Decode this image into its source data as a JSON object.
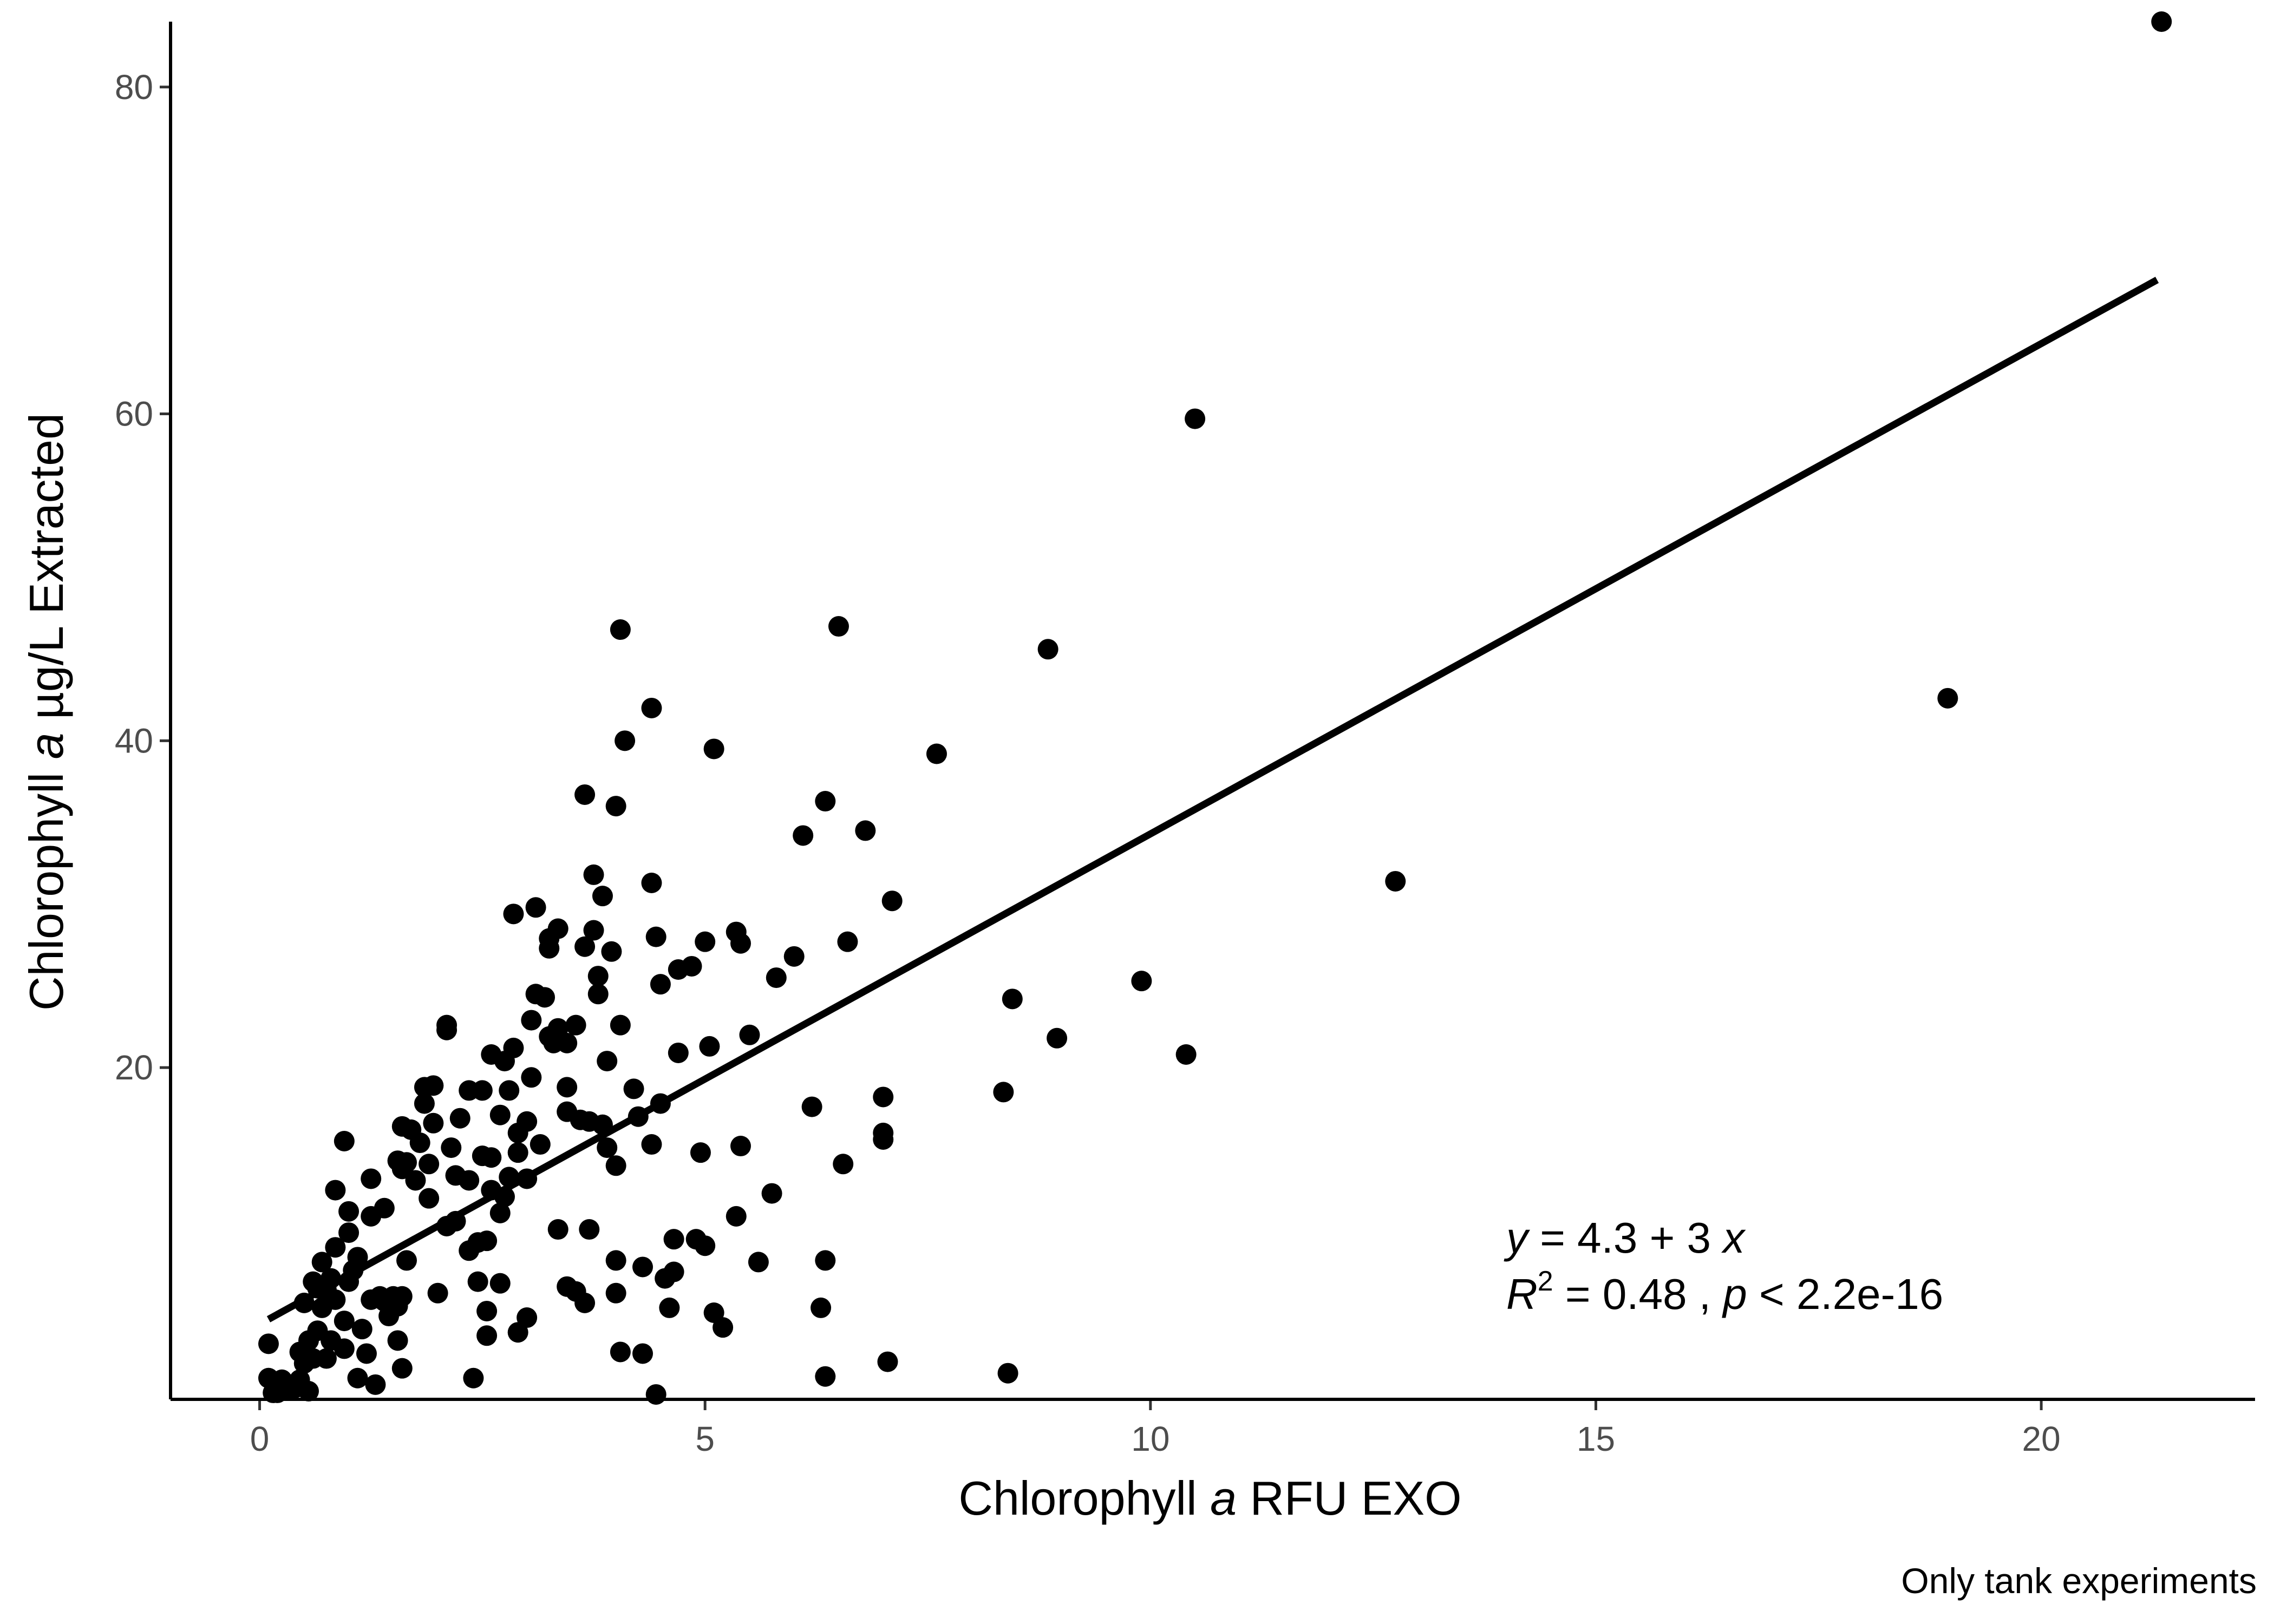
{
  "chart_data": {
    "type": "scatter",
    "xlabel": {
      "pre": "Chlorophyll ",
      "italic": "a",
      "post": " RFU EXO"
    },
    "ylabel": {
      "pre": "Chlorophyll ",
      "italic": "a",
      "post": " µg/L Extracted"
    },
    "caption": "Only tank experiments",
    "xlim": [
      -1.0,
      22.4
    ],
    "ylim": [
      -0.3,
      84.0
    ],
    "x_ticks": [
      0,
      5,
      10,
      15,
      20
    ],
    "y_ticks": [
      20,
      40,
      60,
      80
    ],
    "grid": false,
    "point_color": "#000000",
    "fit": {
      "intercept": 4.3,
      "slope": 3.0,
      "x_range": [
        0.1,
        21.3
      ]
    },
    "equation": {
      "y": "y",
      "lhs": " = 4.3 + 3 ",
      "x": "x"
    },
    "stats": {
      "r": "R",
      "sup": "2",
      "mid": " = 0.48 ,  ",
      "p": "p",
      "rest": " < 2.2e-16"
    },
    "points": [
      [
        21.35,
        84.0
      ],
      [
        10.5,
        59.7
      ],
      [
        18.95,
        42.6
      ],
      [
        12.75,
        31.4
      ],
      [
        8.85,
        45.6
      ],
      [
        9.9,
        25.3
      ],
      [
        8.95,
        21.8
      ],
      [
        10.4,
        20.8
      ],
      [
        8.45,
        24.2
      ],
      [
        8.35,
        18.5
      ],
      [
        8.4,
        1.3
      ],
      [
        7.6,
        39.2
      ],
      [
        7.1,
        30.2
      ],
      [
        7.0,
        18.2
      ],
      [
        7.0,
        16.0
      ],
      [
        7.0,
        15.6
      ],
      [
        7.05,
        2.0
      ],
      [
        6.8,
        34.5
      ],
      [
        6.5,
        47.0
      ],
      [
        6.35,
        36.3
      ],
      [
        6.6,
        27.7
      ],
      [
        6.55,
        14.1
      ],
      [
        6.35,
        8.2
      ],
      [
        6.3,
        5.3
      ],
      [
        6.35,
        1.1
      ],
      [
        6.1,
        34.2
      ],
      [
        6.2,
        17.6
      ],
      [
        6.0,
        26.8
      ],
      [
        5.8,
        25.5
      ],
      [
        5.75,
        12.3
      ],
      [
        5.6,
        8.1
      ],
      [
        5.5,
        22.0
      ],
      [
        5.4,
        27.6
      ],
      [
        5.35,
        28.3
      ],
      [
        5.4,
        15.2
      ],
      [
        5.35,
        10.9
      ],
      [
        5.2,
        4.1
      ],
      [
        5.1,
        5.0
      ],
      [
        5.1,
        39.5
      ],
      [
        5.0,
        27.7
      ],
      [
        5.05,
        21.3
      ],
      [
        4.95,
        14.8
      ],
      [
        5.0,
        9.1
      ],
      [
        4.9,
        9.5
      ],
      [
        4.85,
        26.2
      ],
      [
        4.7,
        26.0
      ],
      [
        4.7,
        20.9
      ],
      [
        4.65,
        9.5
      ],
      [
        4.65,
        7.5
      ],
      [
        4.6,
        5.3
      ],
      [
        4.55,
        7.1
      ],
      [
        4.5,
        25.1
      ],
      [
        4.5,
        17.8
      ],
      [
        4.4,
        42.0
      ],
      [
        4.4,
        31.3
      ],
      [
        4.4,
        15.3
      ],
      [
        4.45,
        28.0
      ],
      [
        4.2,
        18.7
      ],
      [
        4.25,
        17.0
      ],
      [
        4.3,
        2.5
      ],
      [
        4.3,
        7.8
      ],
      [
        4.1,
        40.0
      ],
      [
        4.05,
        46.8
      ],
      [
        4.05,
        22.6
      ],
      [
        4.0,
        36.0
      ],
      [
        3.95,
        27.1
      ],
      [
        4.0,
        14.0
      ],
      [
        4.0,
        8.2
      ],
      [
        4.05,
        2.6
      ],
      [
        4.0,
        6.2
      ],
      [
        4.45,
        0.0
      ],
      [
        3.85,
        30.5
      ],
      [
        3.8,
        25.6
      ],
      [
        3.8,
        24.5
      ],
      [
        3.9,
        20.4
      ],
      [
        3.9,
        15.1
      ],
      [
        3.75,
        31.8
      ],
      [
        3.75,
        28.4
      ],
      [
        3.85,
        16.5
      ],
      [
        3.65,
        36.7
      ],
      [
        3.65,
        27.4
      ],
      [
        3.7,
        16.7
      ],
      [
        3.7,
        10.1
      ],
      [
        3.65,
        5.6
      ],
      [
        3.55,
        22.6
      ],
      [
        3.6,
        16.8
      ],
      [
        3.55,
        6.3
      ],
      [
        3.45,
        21.5
      ],
      [
        3.45,
        17.3
      ],
      [
        3.45,
        18.8
      ],
      [
        3.45,
        6.6
      ],
      [
        3.35,
        22.4
      ],
      [
        3.35,
        28.5
      ],
      [
        3.3,
        21.5
      ],
      [
        3.35,
        10.1
      ],
      [
        3.25,
        27.9
      ],
      [
        3.25,
        27.3
      ],
      [
        3.25,
        21.9
      ],
      [
        3.2,
        24.3
      ],
      [
        3.1,
        29.8
      ],
      [
        3.1,
        24.5
      ],
      [
        3.05,
        22.9
      ],
      [
        3.05,
        19.4
      ],
      [
        3.15,
        15.3
      ],
      [
        3.0,
        16.7
      ],
      [
        3.0,
        13.2
      ],
      [
        3.0,
        4.7
      ],
      [
        2.85,
        29.4
      ],
      [
        2.85,
        21.2
      ],
      [
        2.9,
        16.0
      ],
      [
        2.9,
        14.8
      ],
      [
        2.9,
        3.8
      ],
      [
        2.8,
        18.6
      ],
      [
        2.8,
        13.3
      ],
      [
        2.75,
        20.4
      ],
      [
        2.75,
        12.1
      ],
      [
        2.7,
        17.1
      ],
      [
        2.7,
        11.1
      ],
      [
        2.7,
        6.8
      ],
      [
        2.6,
        20.8
      ],
      [
        2.6,
        14.5
      ],
      [
        2.6,
        12.5
      ],
      [
        2.55,
        9.4
      ],
      [
        2.55,
        5.1
      ],
      [
        2.55,
        3.6
      ],
      [
        2.5,
        18.6
      ],
      [
        2.5,
        14.6
      ],
      [
        2.45,
        9.3
      ],
      [
        2.45,
        6.9
      ],
      [
        2.35,
        18.6
      ],
      [
        2.35,
        13.1
      ],
      [
        2.35,
        8.8
      ],
      [
        2.4,
        1.0
      ],
      [
        2.25,
        16.9
      ],
      [
        2.2,
        13.4
      ],
      [
        2.2,
        10.6
      ],
      [
        2.1,
        22.6
      ],
      [
        2.1,
        22.3
      ],
      [
        2.15,
        15.1
      ],
      [
        2.1,
        10.3
      ],
      [
        1.95,
        18.9
      ],
      [
        1.95,
        16.6
      ],
      [
        1.9,
        14.1
      ],
      [
        1.9,
        12.0
      ],
      [
        2.0,
        6.2
      ],
      [
        1.85,
        18.8
      ],
      [
        1.85,
        17.8
      ],
      [
        1.8,
        15.4
      ],
      [
        1.75,
        13.1
      ],
      [
        1.7,
        16.2
      ],
      [
        1.65,
        14.2
      ],
      [
        1.65,
        8.2
      ],
      [
        1.6,
        16.4
      ],
      [
        1.6,
        13.8
      ],
      [
        1.6,
        6.0
      ],
      [
        1.6,
        1.6
      ],
      [
        1.55,
        14.3
      ],
      [
        1.55,
        5.4
      ],
      [
        1.55,
        3.3
      ],
      [
        1.5,
        6.0
      ],
      [
        1.45,
        4.8
      ],
      [
        1.4,
        11.4
      ],
      [
        1.4,
        5.7
      ],
      [
        1.35,
        6.0
      ],
      [
        1.3,
        0.6
      ],
      [
        1.25,
        13.2
      ],
      [
        1.25,
        10.9
      ],
      [
        1.25,
        5.8
      ],
      [
        1.2,
        2.5
      ],
      [
        1.15,
        4.0
      ],
      [
        1.1,
        8.4
      ],
      [
        1.05,
        7.6
      ],
      [
        1.1,
        1.0
      ],
      [
        0.95,
        15.5
      ],
      [
        1.0,
        11.2
      ],
      [
        1.0,
        9.9
      ],
      [
        1.0,
        6.9
      ],
      [
        0.95,
        4.5
      ],
      [
        0.95,
        2.8
      ],
      [
        0.85,
        12.5
      ],
      [
        0.85,
        9.0
      ],
      [
        0.85,
        5.8
      ],
      [
        0.8,
        7.1
      ],
      [
        0.8,
        3.3
      ],
      [
        0.75,
        6.4
      ],
      [
        0.75,
        2.2
      ],
      [
        0.7,
        8.1
      ],
      [
        0.7,
        5.3
      ],
      [
        0.65,
        6.5
      ],
      [
        0.65,
        3.9
      ],
      [
        0.6,
        6.9
      ],
      [
        0.6,
        2.2
      ],
      [
        0.55,
        3.3
      ],
      [
        0.5,
        5.6
      ],
      [
        0.5,
        1.9
      ],
      [
        0.45,
        2.6
      ],
      [
        0.45,
        0.9
      ],
      [
        0.4,
        0.4
      ],
      [
        0.35,
        0.6
      ],
      [
        0.3,
        0.3
      ],
      [
        0.25,
        0.9
      ],
      [
        0.2,
        0.1
      ],
      [
        0.1,
        3.1
      ],
      [
        0.1,
        1.0
      ],
      [
        0.15,
        0.1
      ],
      [
        0.55,
        0.2
      ]
    ]
  }
}
